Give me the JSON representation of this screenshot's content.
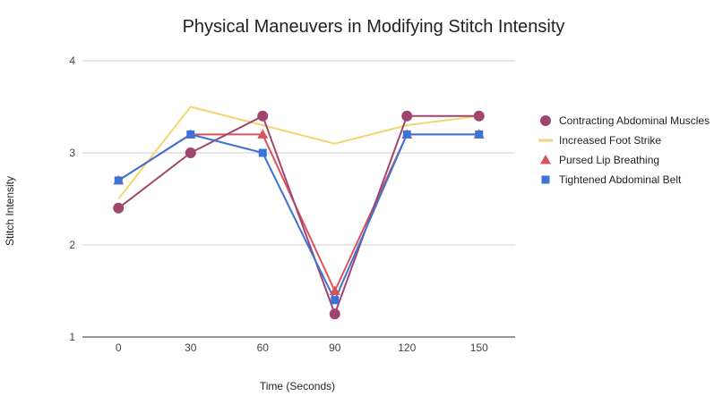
{
  "chart_data": {
    "type": "line",
    "title": "Physical Maneuvers in Modifying Stitch Intensity",
    "xlabel": "Time (Seconds)",
    "ylabel": "Stitch Intensity",
    "x": [
      0,
      30,
      60,
      90,
      120,
      150
    ],
    "ylim": [
      1,
      4
    ],
    "yticks": [
      1,
      2,
      3,
      4
    ],
    "grid": true,
    "legend_position": "right",
    "series": [
      {
        "name": "Contracting Abdominal Muscles",
        "values": [
          2.4,
          3.0,
          3.4,
          1.25,
          3.4,
          3.4
        ],
        "color": "#a0456f",
        "marker": "circle"
      },
      {
        "name": "Increased Foot Strike",
        "values": [
          2.5,
          3.5,
          3.3,
          3.1,
          3.3,
          3.4
        ],
        "color": "#f6d56f",
        "marker": "none"
      },
      {
        "name": "Pursed Lip Breathing",
        "values": [
          2.7,
          3.2,
          3.2,
          1.5,
          3.2,
          3.2
        ],
        "color": "#d9545a",
        "marker": "triangle"
      },
      {
        "name": "Tightened Abdominal Belt",
        "values": [
          2.7,
          3.2,
          3.0,
          1.4,
          3.2,
          3.2
        ],
        "color": "#3d73d4",
        "marker": "square"
      }
    ]
  }
}
